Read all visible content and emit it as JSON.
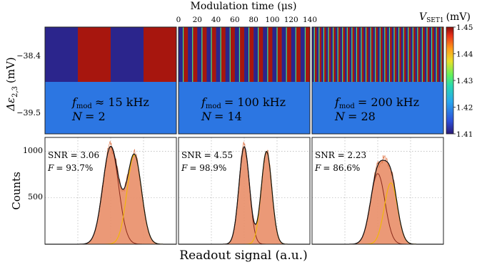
{
  "figure": {
    "top_axis_label": "Modulation time (μs)",
    "top_ticks": [
      0,
      20,
      40,
      60,
      80,
      100,
      120,
      140
    ],
    "y_label_top_var": "Δε",
    "y_label_top_sub": "2,3",
    "y_label_top_unit": "(mV)",
    "y_ticks_top": [
      "−38.4",
      "−39.5"
    ],
    "y_label_bottom": "Counts",
    "y_ticks_bottom": [
      "1000",
      "500"
    ],
    "x_label": "Readout signal (a.u.)",
    "colorbar_var": "V",
    "colorbar_sub": "SET1",
    "colorbar_unit": "(mV)",
    "colorbar_ticks": [
      "1.45",
      "1.44",
      "1.43",
      "1.42",
      "1.41"
    ],
    "colorbar_range": [
      1.41,
      1.45
    ]
  },
  "chart_data": [
    {
      "type": "heatmap",
      "panel": "top-left",
      "f_mod_text": "≈ 15 kHz",
      "N_text": "= 2",
      "x_range_us": [
        0,
        140
      ],
      "rows": [
        {
          "delta_eps_mV": -38.4,
          "segments": [
            {
              "x_start": 0,
              "x_end": 35,
              "value": 1.411
            },
            {
              "x_start": 35,
              "x_end": 70,
              "value": 1.449
            },
            {
              "x_start": 70,
              "x_end": 105,
              "value": 1.411
            },
            {
              "x_start": 105,
              "x_end": 140,
              "value": 1.449
            }
          ]
        },
        {
          "delta_eps_mV": -39.5,
          "value": 1.418
        }
      ]
    },
    {
      "type": "heatmap",
      "panel": "top-center",
      "f_mod_text": "= 100 kHz",
      "N_text": "= 14",
      "x_range_us": [
        0,
        140
      ],
      "period_us": 10,
      "rows": [
        {
          "delta_eps_mV": -38.4,
          "levels": [
            1.411,
            1.449
          ]
        },
        {
          "delta_eps_mV": -39.5,
          "value": 1.418
        }
      ]
    },
    {
      "type": "heatmap",
      "panel": "top-right",
      "f_mod_text": "= 200 kHz",
      "N_text": "= 28",
      "x_range_us": [
        0,
        140
      ],
      "period_us": 5,
      "rows": [
        {
          "delta_eps_mV": -38.4,
          "levels": [
            1.411,
            1.449
          ]
        },
        {
          "delta_eps_mV": -39.5,
          "value": 1.418
        }
      ]
    },
    {
      "type": "area",
      "panel": "bottom-left",
      "snr": "= 3.06",
      "fidelity": "= 93.7%",
      "y_range": [
        0,
        1150
      ],
      "x_range": [
        0,
        1
      ],
      "peaks": [
        {
          "center": 0.5,
          "width": 0.06,
          "height": 1050
        },
        {
          "center": 0.68,
          "width": 0.055,
          "height": 960
        }
      ]
    },
    {
      "type": "area",
      "panel": "bottom-center",
      "snr": "= 4.55",
      "fidelity": "= 98.9%",
      "y_range": [
        0,
        1150
      ],
      "x_range": [
        0,
        1
      ],
      "peaks": [
        {
          "center": 0.5,
          "width": 0.04,
          "height": 1050
        },
        {
          "center": 0.67,
          "width": 0.04,
          "height": 1000
        }
      ]
    },
    {
      "type": "area",
      "panel": "bottom-right",
      "snr": "= 2.23",
      "fidelity": "= 86.6%",
      "y_range": [
        0,
        1150
      ],
      "x_range": [
        0,
        1
      ],
      "peaks": [
        {
          "center": 0.5,
          "width": 0.055,
          "height": 760
        },
        {
          "center": 0.6,
          "width": 0.05,
          "height": 660
        }
      ]
    }
  ]
}
